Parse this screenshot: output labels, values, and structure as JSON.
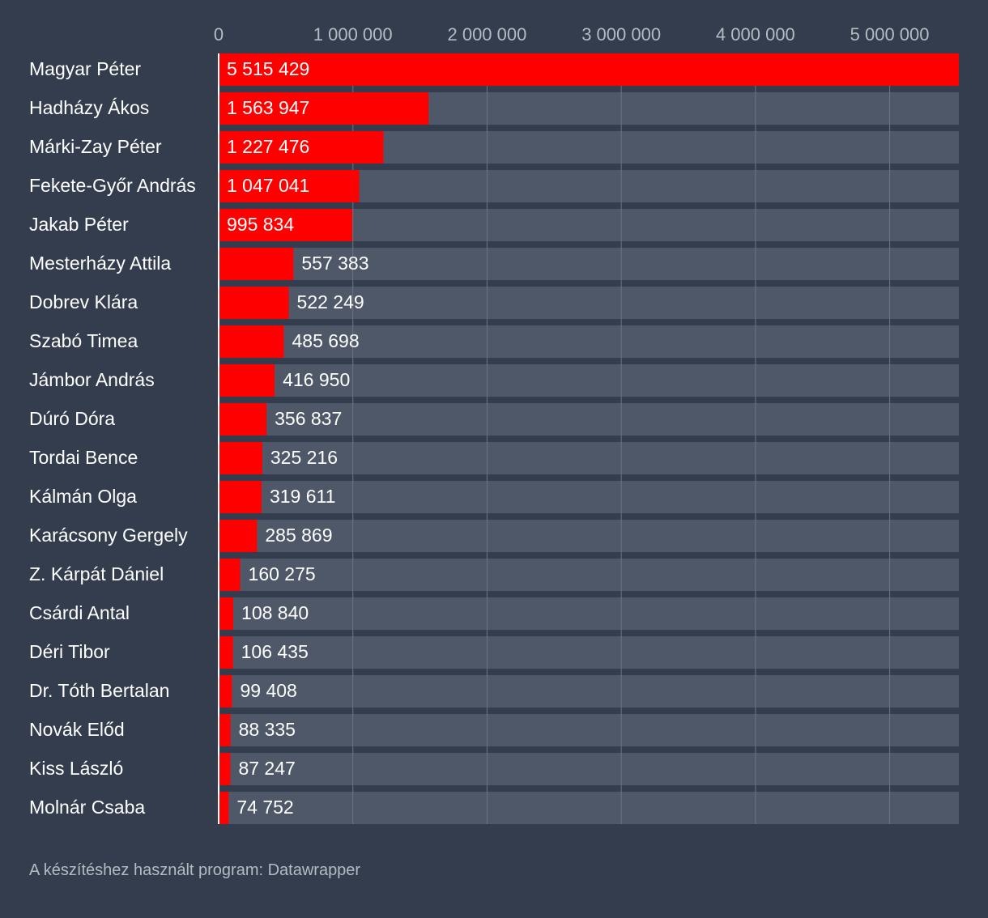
{
  "colors": {
    "background": "#343d4e",
    "track": "#4f5868",
    "bar": "#ff0000",
    "grid": "#6c7483",
    "axis": "#ffffff",
    "text": "#ffffff",
    "muted": "#b5bac3"
  },
  "footer": "A készítéshez használt program: Datawrapper",
  "chart_data": {
    "type": "bar",
    "orientation": "horizontal",
    "xlim": [
      0,
      5515429
    ],
    "grid": true,
    "x_ticks": [
      0,
      1000000,
      2000000,
      3000000,
      4000000,
      5000000
    ],
    "x_tick_labels": [
      "0",
      "1 000 000",
      "2 000 000",
      "3 000 000",
      "4 000 000",
      "5 000 000"
    ],
    "categories": [
      "Magyar Péter",
      "Hadházy Ákos",
      "Márki-Zay Péter",
      "Fekete-Győr András",
      "Jakab Péter",
      "Mesterházy Attila",
      "Dobrev Klára",
      "Szabó Timea",
      "Jámbor András",
      "Dúró Dóra",
      "Tordai Bence",
      "Kálmán Olga",
      "Karácsony Gergely",
      "Z. Kárpát Dániel",
      "Csárdi Antal",
      "Déri Tibor",
      "Dr. Tóth Bertalan",
      "Novák Előd",
      "Kiss László",
      "Molnár Csaba"
    ],
    "values": [
      5515429,
      1563947,
      1227476,
      1047041,
      995834,
      557383,
      522249,
      485698,
      416950,
      356837,
      325216,
      319611,
      285869,
      160275,
      108840,
      106435,
      99408,
      88335,
      87247,
      74752
    ],
    "value_labels": [
      "5 515 429",
      "1 563 947",
      "1 227 476",
      "1 047 041",
      "995 834",
      "557 383",
      "522 249",
      "485 698",
      "416 950",
      "356 837",
      "325 216",
      "319 611",
      "285 869",
      "160 275",
      "108 840",
      "106 435",
      "99 408",
      "88 335",
      "87 247",
      "74 752"
    ]
  }
}
